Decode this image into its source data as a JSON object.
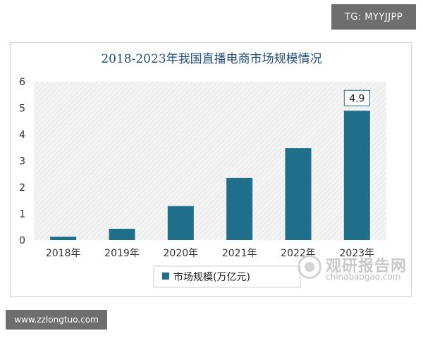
{
  "watermark_top": "TG: MYYJJPP",
  "watermark_bottom": "www.zzlongtuo.com",
  "source_watermark": {
    "cn": "观研报告网",
    "en": "chinabaogao.com"
  },
  "chart_data": {
    "type": "bar",
    "title": "2018-2023年我国直播电商市场规模情况",
    "categories": [
      "2018年",
      "2019年",
      "2020年",
      "2021年",
      "2022年",
      "2023年"
    ],
    "series": [
      {
        "name": "市场规模(万亿元)",
        "values": [
          0.13,
          0.43,
          1.29,
          2.35,
          3.49,
          4.9
        ]
      }
    ],
    "ylim": [
      0,
      6
    ],
    "yticks": [
      0,
      1,
      2,
      3,
      4,
      5,
      6
    ],
    "data_labels": [
      {
        "category": "2023年",
        "text": "4.9"
      }
    ],
    "colors": {
      "bar": "#1f6f8b",
      "plot_bg": "#f2f2f2",
      "title": "#1f4e79"
    },
    "legend_position": "bottom",
    "grid": false
  }
}
